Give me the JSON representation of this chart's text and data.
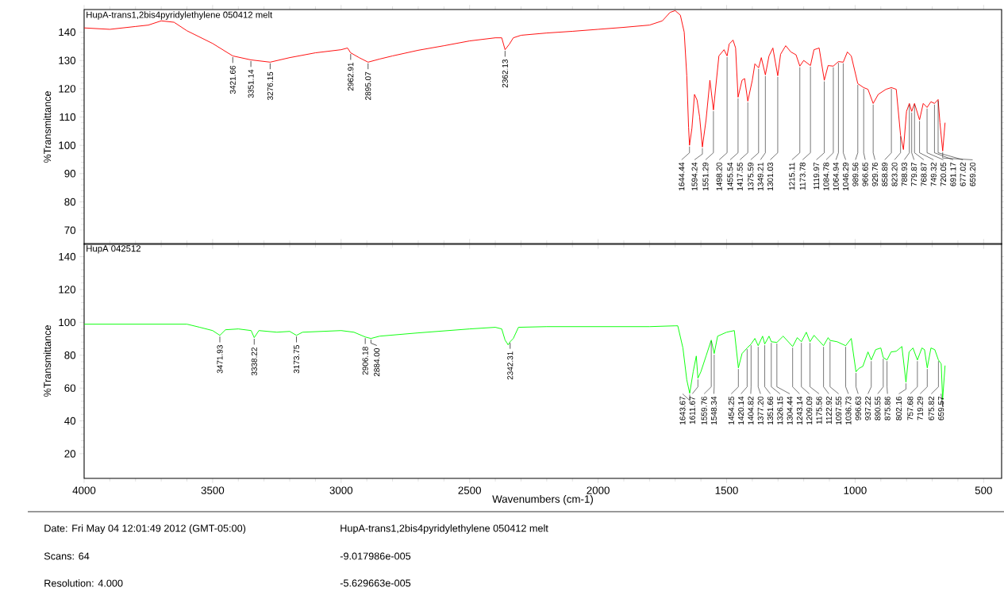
{
  "chart_data": [
    {
      "type": "line",
      "title": "HupA-trans1,2bis4pyridylethylene 050412 melt",
      "ylabel": "%Transmittance",
      "marker": "none",
      "line_style": "solid",
      "tick_labels": "y",
      "xlim": [
        4000,
        430
      ],
      "ylim": [
        65,
        148
      ],
      "xticks": [
        4000,
        3500,
        3000,
        2500,
        2000,
        1500,
        1000,
        500
      ],
      "yticks": [
        70,
        80,
        90,
        100,
        110,
        120,
        130,
        140
      ],
      "x": [
        4000,
        3900,
        3800,
        3750,
        3700,
        3650,
        3600,
        3500,
        3421.66,
        3351.14,
        3276.15,
        3200,
        3100,
        3000,
        2975,
        2962.91,
        2930,
        2895.07,
        2850,
        2800,
        2700,
        2600,
        2500,
        2400,
        2375,
        2362.13,
        2345,
        2330,
        2300,
        2200,
        2100,
        2000,
        1900,
        1800,
        1750,
        1720,
        1700,
        1680,
        1665,
        1655,
        1648,
        1644.44,
        1635,
        1625,
        1615,
        1605,
        1594.24,
        1580,
        1565,
        1551.29,
        1530,
        1510,
        1498.2,
        1490,
        1475,
        1465,
        1455.54,
        1440,
        1430,
        1417.55,
        1400,
        1390,
        1375.59,
        1365,
        1349.21,
        1335,
        1320,
        1301.03,
        1290,
        1270,
        1250,
        1230,
        1215.11,
        1200,
        1173.78,
        1160,
        1140,
        1119.97,
        1105,
        1084.78,
        1064.94,
        1046.29,
        1030,
        1015,
        989.56,
        966.65,
        950,
        929.76,
        910,
        880,
        858.89,
        840,
        823.2,
        812,
        800,
        788.93,
        779.87,
        768.87,
        749.32,
        735,
        720.05,
        705,
        691.17,
        677.02,
        670,
        659.2,
        650
      ],
      "series": [
        {
          "color": "#ff0000",
          "values": [
            141.5,
            141,
            142,
            142.5,
            144,
            143.5,
            140.5,
            136,
            131.6,
            130.2,
            129.4,
            131,
            132.7,
            133.8,
            134.4,
            132.7,
            131,
            129.4,
            130.5,
            131.6,
            133.6,
            135.2,
            136.9,
            138,
            138,
            133.8,
            135.8,
            138,
            138.9,
            139.7,
            140.3,
            141,
            141.7,
            142.5,
            144,
            147,
            147.6,
            146,
            140,
            124.6,
            106.4,
            100,
            106,
            118,
            116,
            110,
            99.4,
            109,
            123,
            112.5,
            131.6,
            133.8,
            131.6,
            135.8,
            137.2,
            134.4,
            117,
            123,
            123.6,
            115.6,
            123,
            128.8,
            127.4,
            131,
            124.9,
            131.6,
            134.4,
            124.6,
            132.2,
            135.2,
            133,
            132,
            128,
            130,
            128.2,
            133.8,
            134.4,
            123,
            128.2,
            128,
            129.6,
            129.4,
            133,
            131.6,
            121.8,
            120.4,
            119.8,
            114.8,
            118,
            119.8,
            120.4,
            119.8,
            103.6,
            98.5,
            112,
            114.8,
            112,
            114.8,
            109,
            114.8,
            113.4,
            115.4,
            114.8,
            116.2,
            108,
            98,
            108
          ]
        }
      ],
      "annotations": [
        {
          "text": "3421.66",
          "x": 3421.66,
          "y": 131.6
        },
        {
          "text": "3351.14",
          "x": 3351.14,
          "y": 130.2
        },
        {
          "text": "3276.15",
          "x": 3276.15,
          "y": 129.4
        },
        {
          "text": "2962.91",
          "x": 2962.91,
          "y": 132.7
        },
        {
          "text": "2895.07",
          "x": 2895.07,
          "y": 129.4
        },
        {
          "text": "2362.13",
          "x": 2362.13,
          "y": 133.8
        },
        {
          "text": "1644.44",
          "x": 1644.44,
          "y": 100
        },
        {
          "text": "1594.24",
          "x": 1594.24,
          "y": 99.4
        },
        {
          "text": "1551.29",
          "x": 1551.29,
          "y": 112.5
        },
        {
          "text": "1498.20",
          "x": 1498.2,
          "y": 131.6
        },
        {
          "text": "1455.54",
          "x": 1455.54,
          "y": 117
        },
        {
          "text": "1417.55",
          "x": 1417.55,
          "y": 115.6
        },
        {
          "text": "1375.59",
          "x": 1375.59,
          "y": 127.4
        },
        {
          "text": "1349.21",
          "x": 1349.21,
          "y": 124.9
        },
        {
          "text": "1301.03",
          "x": 1301.03,
          "y": 124.6
        },
        {
          "text": "1215.11",
          "x": 1215.11,
          "y": 128
        },
        {
          "text": "1173.78",
          "x": 1173.78,
          "y": 128.2
        },
        {
          "text": "1119.97",
          "x": 1119.97,
          "y": 123
        },
        {
          "text": "1084.78",
          "x": 1084.78,
          "y": 128
        },
        {
          "text": "1064.94",
          "x": 1064.94,
          "y": 129.6
        },
        {
          "text": "1046.29",
          "x": 1046.29,
          "y": 129.4
        },
        {
          "text": "989.56",
          "x": 989.56,
          "y": 121.8
        },
        {
          "text": "966.65",
          "x": 966.65,
          "y": 120.4
        },
        {
          "text": "929.76",
          "x": 929.76,
          "y": 114.8
        },
        {
          "text": "858.89",
          "x": 858.89,
          "y": 120.4
        },
        {
          "text": "823.20",
          "x": 823.2,
          "y": 103.6
        },
        {
          "text": "788.93",
          "x": 788.93,
          "y": 114.8
        },
        {
          "text": "779.87",
          "x": 779.87,
          "y": 112
        },
        {
          "text": "768.87",
          "x": 768.87,
          "y": 114.8
        },
        {
          "text": "749.32",
          "x": 749.32,
          "y": 109
        },
        {
          "text": "720.05",
          "x": 720.05,
          "y": 113.4
        },
        {
          "text": "691.17",
          "x": 691.17,
          "y": 114.8
        },
        {
          "text": "677.02",
          "x": 677.02,
          "y": 116.2
        },
        {
          "text": "659.20",
          "x": 659.2,
          "y": 98
        }
      ]
    },
    {
      "type": "line",
      "title": "HupA 042512",
      "xlabel": "Wavenumbers (cm-1)",
      "ylabel": "%Transmittance",
      "marker": "none",
      "line_style": "solid",
      "xlim": [
        4000,
        430
      ],
      "ylim": [
        5,
        148
      ],
      "xticks": [
        4000,
        3500,
        3000,
        2500,
        2000,
        1500,
        1000,
        500
      ],
      "yticks": [
        20,
        40,
        60,
        80,
        100,
        120,
        140
      ],
      "x": [
        4000,
        3800,
        3600,
        3550,
        3500,
        3471.93,
        3450,
        3400,
        3350,
        3338.22,
        3320,
        3250,
        3200,
        3173.75,
        3150,
        3000,
        2950,
        2906.18,
        2884,
        2850,
        2700,
        2500,
        2400,
        2375,
        2362,
        2350,
        2342.31,
        2330,
        2310,
        2200,
        2000,
        1800,
        1700,
        1690,
        1670,
        1655,
        1643.67,
        1630,
        1618,
        1611.67,
        1600,
        1580,
        1559.76,
        1548.34,
        1535,
        1500,
        1470,
        1454.25,
        1440,
        1420.14,
        1404.82,
        1390,
        1377.2,
        1360,
        1351.66,
        1335,
        1326.15,
        1304.44,
        1280,
        1243.14,
        1225,
        1209.09,
        1190,
        1175.56,
        1160,
        1122.92,
        1105,
        1097.55,
        1070,
        1036.73,
        1015,
        996.63,
        985,
        970,
        950,
        937.22,
        920,
        900,
        890.55,
        875.86,
        860,
        840,
        818,
        802.16,
        790,
        775,
        757.68,
        740,
        730,
        719.29,
        705,
        690,
        675.82,
        665,
        659.57,
        650
      ],
      "series": [
        {
          "color": "#00ff00",
          "values": [
            98.9,
            98.9,
            98.9,
            97,
            95,
            92.1,
            95.5,
            96,
            95,
            90.7,
            95,
            94,
            94.5,
            92.1,
            94,
            95,
            94,
            91.1,
            90.2,
            91.6,
            93.6,
            96,
            97,
            96,
            89.2,
            86.3,
            88.2,
            90.2,
            97,
            97.4,
            97.4,
            97.4,
            97.9,
            97.9,
            84.4,
            65,
            56.8,
            70,
            79.5,
            66,
            70,
            79.5,
            89.2,
            81,
            91.6,
            94,
            95,
            72.3,
            81,
            84.4,
            86.8,
            90.2,
            85.8,
            91.6,
            86.8,
            91.6,
            88.2,
            87.8,
            91.6,
            85.3,
            90.7,
            88.2,
            94,
            88.2,
            92.1,
            85.8,
            90.7,
            89,
            88.2,
            85.8,
            90.2,
            69.9,
            72,
            73.2,
            82,
            77.1,
            83.4,
            84.4,
            78.6,
            77.1,
            82,
            82.4,
            85.3,
            63.6,
            82,
            84.4,
            77.1,
            84.4,
            83.4,
            72.3,
            84.4,
            83.4,
            77.1,
            74.7,
            52.9,
            73.7
          ]
        }
      ],
      "annotations": [
        {
          "text": "3471.93",
          "x": 3471.93,
          "y": 92.1
        },
        {
          "text": "3338.22",
          "x": 3338.22,
          "y": 90.7
        },
        {
          "text": "3173.75",
          "x": 3173.75,
          "y": 92.1
        },
        {
          "text": "2906.18",
          "x": 2906.18,
          "y": 91.1
        },
        {
          "text": "2884.00",
          "x": 2884,
          "y": 90.2
        },
        {
          "text": "2342.31",
          "x": 2342.31,
          "y": 88.2
        },
        {
          "text": "1643.67",
          "x": 1643.67,
          "y": 56.8
        },
        {
          "text": "1611.67",
          "x": 1611.67,
          "y": 66
        },
        {
          "text": "1559.76",
          "x": 1559.76,
          "y": 89.2
        },
        {
          "text": "1548.34",
          "x": 1548.34,
          "y": 81
        },
        {
          "text": "1454.25",
          "x": 1454.25,
          "y": 72.3
        },
        {
          "text": "1420.14",
          "x": 1420.14,
          "y": 84.4
        },
        {
          "text": "1404.82",
          "x": 1404.82,
          "y": 86.8
        },
        {
          "text": "1377.20",
          "x": 1377.2,
          "y": 85.8
        },
        {
          "text": "1351.66",
          "x": 1351.66,
          "y": 86.8
        },
        {
          "text": "1326.15",
          "x": 1326.15,
          "y": 88.2
        },
        {
          "text": "1304.44",
          "x": 1304.44,
          "y": 87.8
        },
        {
          "text": "1243.14",
          "x": 1243.14,
          "y": 85.3
        },
        {
          "text": "1209.09",
          "x": 1209.09,
          "y": 88.2
        },
        {
          "text": "1175.56",
          "x": 1175.56,
          "y": 88.2
        },
        {
          "text": "1122.92",
          "x": 1122.92,
          "y": 85.8
        },
        {
          "text": "1097.55",
          "x": 1097.55,
          "y": 89
        },
        {
          "text": "1036.73",
          "x": 1036.73,
          "y": 85.8
        },
        {
          "text": "996.63",
          "x": 996.63,
          "y": 69.9
        },
        {
          "text": "937.22",
          "x": 937.22,
          "y": 77.1
        },
        {
          "text": "890.55",
          "x": 890.55,
          "y": 78.6
        },
        {
          "text": "875.86",
          "x": 875.86,
          "y": 77.1
        },
        {
          "text": "802.16",
          "x": 802.16,
          "y": 63.6
        },
        {
          "text": "757.68",
          "x": 757.68,
          "y": 77.1
        },
        {
          "text": "719.29",
          "x": 719.29,
          "y": 72.3
        },
        {
          "text": "675.82",
          "x": 675.82,
          "y": 77.1
        },
        {
          "text": "659.57",
          "x": 659.57,
          "y": 52.9
        },
        "Date: Fri May 04 12:01:49 2012 (GMT-05:00)",
        "HupA-trans1,2bis4pyridylethylene 050412 melt",
        "Scans: 64",
        "-9.017986e-005",
        "Resolution:  4.000",
        "-5.629663e-005"
      ]
    }
  ]
}
